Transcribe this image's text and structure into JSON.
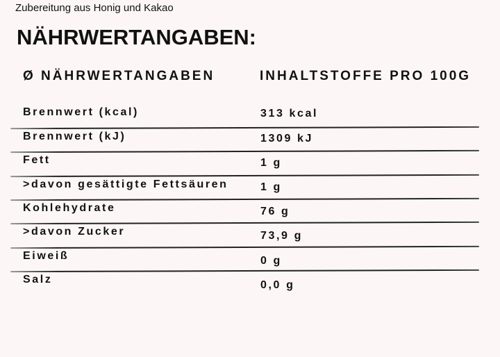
{
  "subtitle": "Zubereitung aus Honig und Kakao",
  "title": "NÄHRWERTANGABEN:",
  "headers": {
    "left": "Ø NÄHRWERTANGABEN",
    "right": "INHALTSTOFFE PRO 100G"
  },
  "rows": [
    {
      "label": "Brennwert (kcal)",
      "value": "313 kcal"
    },
    {
      "label": "Brennwert (kJ)",
      "value": "1309 kJ"
    },
    {
      "label": "Fett",
      "value": "1 g"
    },
    {
      "label": ">davon gesättigte Fettsäuren",
      "value": "1 g"
    },
    {
      "label": "Kohlehydrate",
      "value": "76 g"
    },
    {
      "label": ">davon Zucker",
      "value": "73,9 g"
    },
    {
      "label": "Eiweiß",
      "value": "0 g"
    },
    {
      "label": "Salz",
      "value": "0,0 g"
    }
  ]
}
